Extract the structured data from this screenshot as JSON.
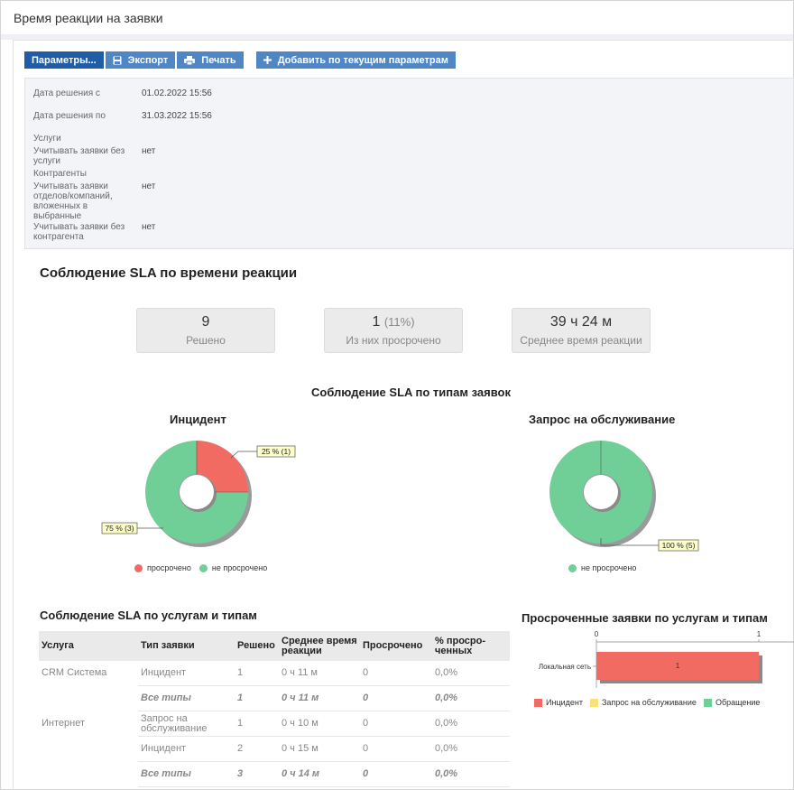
{
  "page": {
    "title": "Время реакции на заявки"
  },
  "toolbar": {
    "params_label": "Параметры...",
    "export_label": "Экспорт",
    "print_label": "Печать",
    "add_label": "Добавить по текущим параметрам"
  },
  "params": {
    "date_from_label": "Дата решения с",
    "date_from_value": "01.02.2022 15:56",
    "date_to_label": "Дата решения по",
    "date_to_value": "31.03.2022 15:56",
    "services_label": "Услуги",
    "no_service_label": "Учитывать заявки без услуги",
    "no_service_value": "нет",
    "contractors_label": "Контрагенты",
    "nested_label": "Учитывать заявки отделов/компаний, вложенных в выбранные",
    "nested_value": "нет",
    "no_contractor_label": "Учитывать заявки без контрагента",
    "no_contractor_value": "нет"
  },
  "sla": {
    "title": "Соблюдение SLA по времени реакции",
    "solved_value": "9",
    "solved_label": "Решено",
    "overdue_value": "1",
    "overdue_pct": "(11%)",
    "overdue_label": "Из них просрочено",
    "avg_value": "39 ч 24 м",
    "avg_label": "Среднее время реакции"
  },
  "types_title": "Соблюдение SLA по типам заявок",
  "colors": {
    "overdue": "#f26b62",
    "ok": "#6fcf97",
    "service": "#f7e27a",
    "accent": "#4f86c6"
  },
  "chart_data": [
    {
      "type": "pie",
      "title": "Инцидент",
      "labels": [
        "просрочено",
        "не просрочено"
      ],
      "values": [
        1,
        3
      ],
      "data_labels": [
        "25 % (1)",
        "75 % (3)"
      ]
    },
    {
      "type": "pie",
      "title": "Запрос на обслуживание",
      "labels": [
        "не просрочено"
      ],
      "values": [
        5
      ],
      "data_labels": [
        "100 % (5)"
      ]
    },
    {
      "type": "bar",
      "orientation": "horizontal",
      "stacked": true,
      "title": "Просроченные заявки по услугам и типам",
      "categories": [
        "Локальная сеть"
      ],
      "series": [
        {
          "name": "Инцидент",
          "values": [
            1
          ]
        },
        {
          "name": "Запрос на обслуживание",
          "values": [
            0
          ]
        },
        {
          "name": "Обращение",
          "values": [
            0
          ]
        }
      ],
      "xlim": [
        0,
        1
      ],
      "x_ticks": [
        "0",
        "1"
      ],
      "data_labels": [
        "1"
      ],
      "legend": "bottom"
    }
  ],
  "table": {
    "title": "Соблюдение SLA  по услугам и типам",
    "headers": [
      "Услуга",
      "Тип заявки",
      "Решено",
      "Среднее время реакции",
      "Просрочено",
      "% просро-ченных"
    ],
    "rows": [
      [
        "CRM Система",
        "Инцидент",
        "1",
        "0 ч 11 м",
        "0",
        "0,0%"
      ],
      [
        "",
        "Все типы",
        "1",
        "0 ч 11 м",
        "0",
        "0,0%"
      ],
      [
        "Интернет",
        "Запрос на обслуживание",
        "1",
        "0 ч 10 м",
        "0",
        "0,0%"
      ],
      [
        "",
        "Инцидент",
        "2",
        "0 ч 15 м",
        "0",
        "0,0%"
      ],
      [
        "",
        "Все типы",
        "3",
        "0 ч 14 м",
        "0",
        "0,0%"
      ]
    ]
  }
}
